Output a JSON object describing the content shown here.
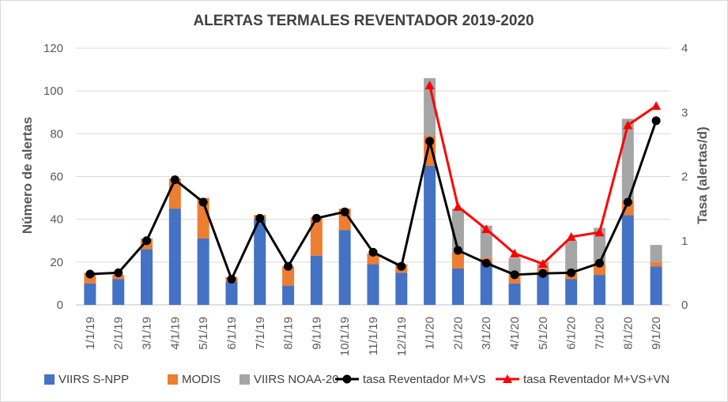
{
  "chart_data": {
    "type": "bar",
    "title": "ALERTAS TERMALES REVENTADOR 2019-2020",
    "ylabel": "Número de alertas",
    "y2label": "Tasa (alertas/d)",
    "ylim": [
      0,
      120
    ],
    "y2lim": [
      0,
      4
    ],
    "yticks": [
      "0",
      "20",
      "40",
      "60",
      "80",
      "100",
      "120"
    ],
    "y2ticks": [
      "0",
      "1",
      "2",
      "3",
      "4"
    ],
    "categories": [
      "1/1/19",
      "2/1/19",
      "3/1/19",
      "4/1/19",
      "5/1/19",
      "6/1/19",
      "7/1/19",
      "8/1/19",
      "9/1/19",
      "10/1/19",
      "11/1/19",
      "12/1/19",
      "1/1/20",
      "2/1/20",
      "3/1/20",
      "4/1/20",
      "5/1/20",
      "6/1/20",
      "7/1/20",
      "8/1/20",
      "9/1/20"
    ],
    "stacked": true,
    "legend_position": "bottom",
    "series": [
      {
        "name": "VIIRS S-NPP",
        "kind": "bar",
        "color": "#4472C4",
        "values": [
          10,
          12,
          26,
          45,
          31,
          11,
          40,
          9,
          23,
          35,
          19,
          15,
          65,
          17,
          20,
          10,
          15,
          12,
          14,
          42,
          18
        ]
      },
      {
        "name": "MODIS",
        "kind": "bar",
        "color": "#ED7D31",
        "values": [
          5,
          2,
          5,
          14,
          19,
          2,
          2,
          9,
          18,
          10,
          5,
          4,
          14,
          8,
          2,
          4,
          2,
          3,
          5,
          7,
          2
        ]
      },
      {
        "name": "VIIRS NOAA-20",
        "kind": "bar",
        "color": "#A5A5A5",
        "values": [
          0,
          0,
          0,
          0,
          0,
          0,
          0,
          0,
          0,
          0,
          0,
          0,
          27,
          20,
          15,
          8,
          3,
          15,
          17,
          38,
          8
        ]
      },
      {
        "name": "tasa Reventador M+VS",
        "kind": "line",
        "axis": "right",
        "color": "#000000",
        "marker": "circle",
        "values": [
          0.48,
          0.5,
          1.0,
          1.95,
          1.6,
          0.4,
          1.35,
          0.6,
          1.35,
          1.45,
          0.82,
          0.6,
          2.55,
          0.85,
          0.65,
          0.47,
          0.49,
          0.5,
          0.65,
          1.6,
          2.87
        ]
      },
      {
        "name": "tasa Reventador M+VS+VN",
        "kind": "line",
        "axis": "right",
        "color": "#FF0000",
        "marker": "triangle",
        "values": [
          null,
          null,
          null,
          null,
          null,
          null,
          null,
          null,
          null,
          null,
          null,
          null,
          3.42,
          1.53,
          1.18,
          0.8,
          0.64,
          1.06,
          1.13,
          2.8,
          3.1
        ]
      }
    ]
  }
}
